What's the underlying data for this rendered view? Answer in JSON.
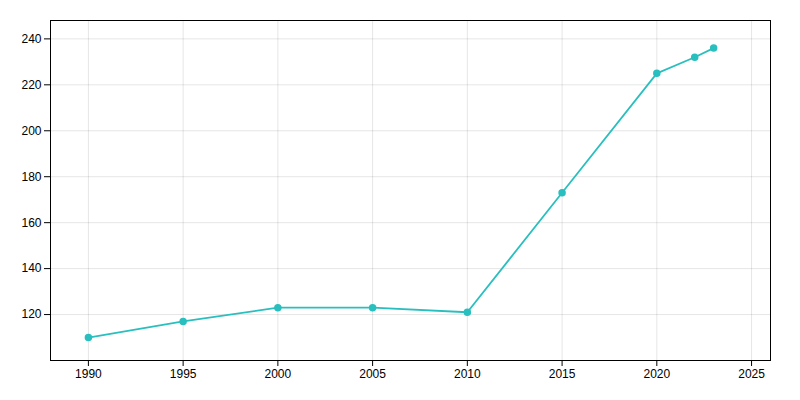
{
  "chart_data": {
    "type": "line",
    "x": [
      1990,
      1995,
      2000,
      2005,
      2010,
      2015,
      2020,
      2022,
      2023
    ],
    "values": [
      110,
      117,
      123,
      123,
      121,
      173,
      225,
      232,
      236
    ],
    "color": "#2abfbf",
    "marker": "circle",
    "xlim": [
      1988,
      2026
    ],
    "ylim": [
      100,
      248
    ],
    "xticks": [
      1990,
      1995,
      2000,
      2005,
      2010,
      2015,
      2020,
      2025
    ],
    "yticks": [
      120,
      140,
      160,
      180,
      200,
      220,
      240
    ],
    "grid": true
  }
}
